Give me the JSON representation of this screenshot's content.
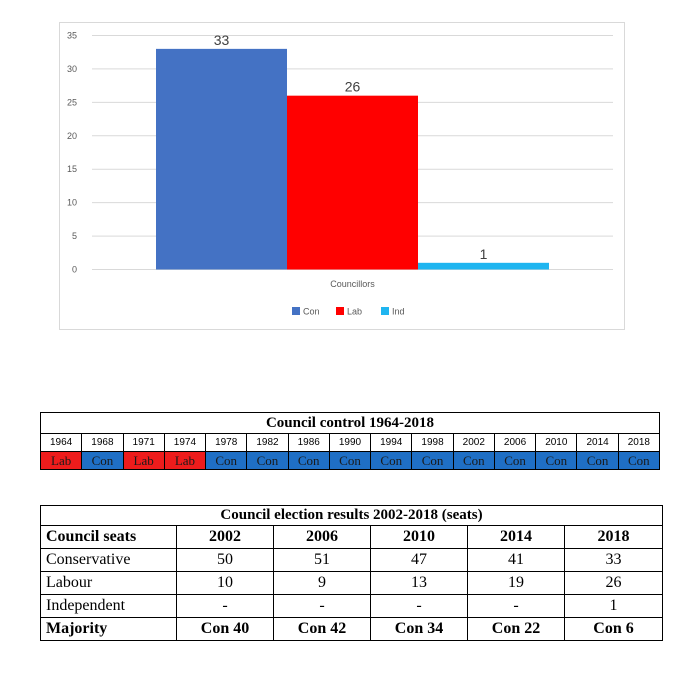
{
  "chart_data": {
    "type": "bar",
    "categories": [
      "Councillors"
    ],
    "series": [
      {
        "name": "Con",
        "values": [
          33
        ],
        "color": "#4472c4"
      },
      {
        "name": "Lab",
        "values": [
          26
        ],
        "color": "#ff0000"
      },
      {
        "name": "Ind",
        "values": [
          1
        ],
        "color": "#1fb5f0"
      }
    ],
    "yticks": [
      0,
      5,
      10,
      15,
      20,
      25,
      30,
      35
    ],
    "ylim": [
      0,
      35
    ],
    "xlabel": "Councillors",
    "ylabel": "",
    "title": "",
    "legend_position": "bottom",
    "grid": true
  },
  "control": {
    "title": "Council control 1964-2018",
    "years": [
      "1964",
      "1968",
      "1971",
      "1974",
      "1978",
      "1982",
      "1986",
      "1990",
      "1994",
      "1998",
      "2002",
      "2006",
      "2010",
      "2014",
      "2018"
    ],
    "parties": [
      "Lab",
      "Con",
      "Lab",
      "Lab",
      "Con",
      "Con",
      "Con",
      "Con",
      "Con",
      "Con",
      "Con",
      "Con",
      "Con",
      "Con",
      "Con"
    ],
    "colors": {
      "Lab": "#ee1c1c",
      "Con": "#1f6fc5"
    }
  },
  "results": {
    "title": "Council election results 2002-2018 (seats)",
    "header": {
      "label": "Council seats",
      "years": [
        "2002",
        "2006",
        "2010",
        "2014",
        "2018"
      ]
    },
    "rows": [
      {
        "label": "Conservative",
        "values": [
          "50",
          "51",
          "47",
          "41",
          "33"
        ]
      },
      {
        "label": "Labour",
        "values": [
          "10",
          "9",
          "13",
          "19",
          "26"
        ]
      },
      {
        "label": "Independent",
        "values": [
          "-",
          "-",
          "-",
          "-",
          "1"
        ]
      }
    ],
    "majority": {
      "label": "Majority",
      "values": [
        "Con 40",
        "Con 42",
        "Con 34",
        "Con 22",
        "Con 6"
      ]
    }
  }
}
